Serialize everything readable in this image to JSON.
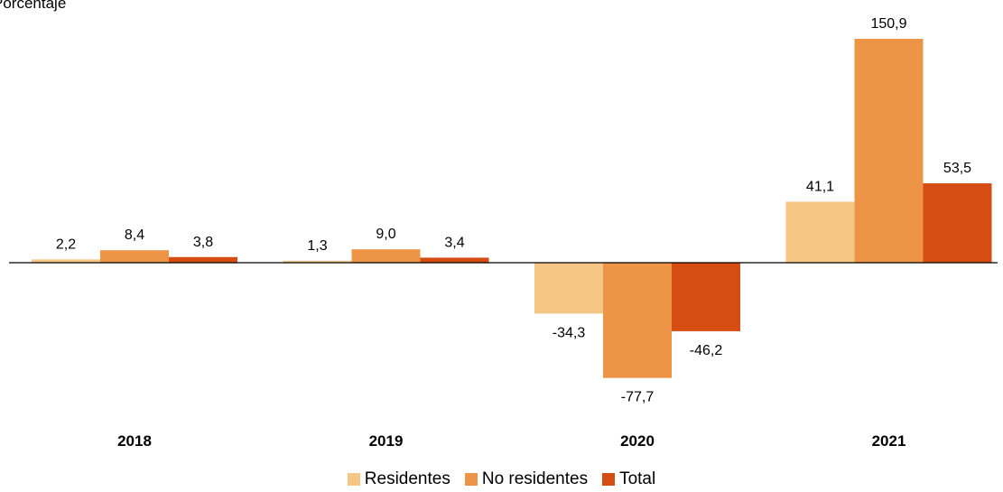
{
  "chart_data": {
    "type": "bar",
    "title": "Porcentaje",
    "categories": [
      "2018",
      "2019",
      "2020",
      "2021"
    ],
    "series": [
      {
        "name": "Residentes",
        "color": "#f5c685",
        "values": [
          2.2,
          1.3,
          -34.3,
          41.1
        ]
      },
      {
        "name": "No residentes",
        "color": "#ee9447",
        "values": [
          8.4,
          9.0,
          -77.7,
          150.9
        ]
      },
      {
        "name": "Total",
        "color": "#d54d12",
        "values": [
          3.8,
          3.4,
          -46.2,
          53.5
        ]
      }
    ],
    "value_labels": [
      [
        "2,2",
        "1,3",
        "-34,3",
        "41,1"
      ],
      [
        "8,4",
        "9,0",
        "-77,7",
        "150,9"
      ],
      [
        "3,8",
        "3,4",
        "-46,2",
        "53,5"
      ]
    ],
    "legend_position": "bottom",
    "grid": false,
    "ylim": [
      -95,
      170
    ]
  }
}
